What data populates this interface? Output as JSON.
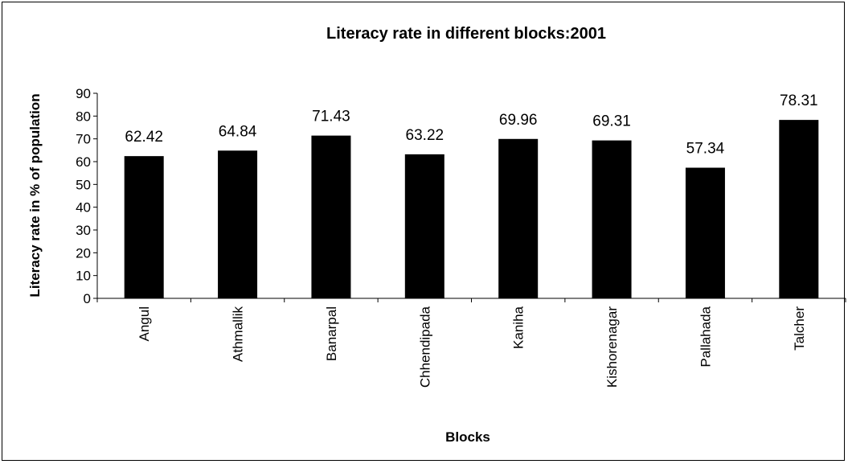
{
  "chart_data": {
    "type": "bar",
    "title": "Literacy rate in different blocks:2001",
    "xlabel": "Blocks",
    "ylabel": "Literacy rate in % of population",
    "categories": [
      "Angul",
      "Athmallik",
      "Banarpal",
      "Chhendipada",
      "Kaniha",
      "Kishorenagar",
      "Pallahada",
      "Talcher"
    ],
    "values": [
      62.42,
      64.84,
      71.43,
      63.22,
      69.96,
      69.31,
      57.34,
      78.31
    ],
    "data_labels": [
      "62.42",
      "64.84",
      "71.43",
      "63.22",
      "69.96",
      "69.31",
      "57.34",
      "78.31"
    ],
    "ylim": [
      0,
      90
    ],
    "yticks": [
      "0",
      "10",
      "20",
      "30",
      "40",
      "50",
      "60",
      "70",
      "80",
      "90"
    ],
    "ytick_values": [
      0,
      10,
      20,
      30,
      40,
      50,
      60,
      70,
      80,
      90
    ],
    "grid": false,
    "legend": "none",
    "bar_color": "#000000"
  }
}
